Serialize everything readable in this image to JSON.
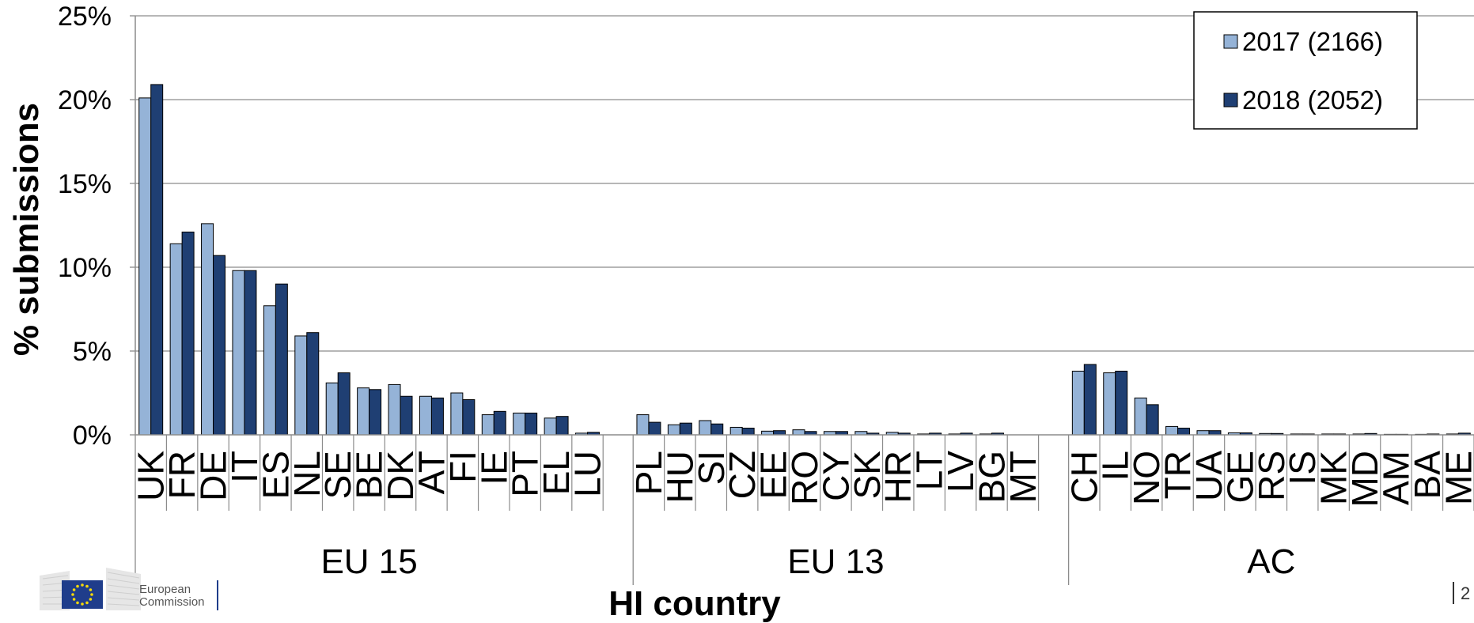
{
  "chart_data": {
    "type": "bar",
    "title": "",
    "ylabel": "% submissions",
    "xlabel": "HI country",
    "ylim": [
      0,
      25
    ],
    "yticks": [
      "0%",
      "5%",
      "10%",
      "15%",
      "20%",
      "25%"
    ],
    "grid": true,
    "legend_position": "top-right",
    "series_colors": [
      "#95b3d7",
      "#1f3f73"
    ],
    "groups": [
      {
        "label": "EU 15",
        "categories": [
          "UK",
          "FR",
          "DE",
          "IT",
          "ES",
          "NL",
          "SE",
          "BE",
          "DK",
          "AT",
          "FI",
          "IE",
          "PT",
          "EL",
          "LU"
        ],
        "s2017": [
          20.1,
          11.4,
          12.6,
          9.8,
          7.7,
          5.9,
          3.1,
          2.8,
          3.0,
          2.3,
          2.5,
          1.2,
          1.3,
          1.0,
          0.1
        ],
        "s2018": [
          20.9,
          12.1,
          10.7,
          9.8,
          9.0,
          6.1,
          3.7,
          2.7,
          2.3,
          2.2,
          2.1,
          1.4,
          1.3,
          1.1,
          0.15
        ]
      },
      {
        "label": "EU 13",
        "categories": [
          "PL",
          "HU",
          "SI",
          "CZ",
          "EE",
          "RO",
          "CY",
          "SK",
          "HR",
          "LT",
          "LV",
          "BG",
          "MT"
        ],
        "s2017": [
          1.2,
          0.6,
          0.85,
          0.45,
          0.22,
          0.3,
          0.2,
          0.2,
          0.15,
          0.05,
          0.05,
          0.05,
          0.0
        ],
        "s2018": [
          0.75,
          0.7,
          0.65,
          0.4,
          0.25,
          0.2,
          0.2,
          0.1,
          0.1,
          0.1,
          0.1,
          0.1,
          0.0
        ]
      },
      {
        "label": "AC",
        "categories": [
          "CH",
          "IL",
          "NO",
          "TR",
          "UA",
          "GE",
          "RS",
          "IS",
          "MK",
          "MD",
          "AM",
          "BA",
          "ME"
        ],
        "s2017": [
          3.8,
          3.7,
          2.2,
          0.5,
          0.25,
          0.12,
          0.08,
          0.05,
          0.05,
          0.05,
          0.03,
          0.03,
          0.05
        ],
        "s2018": [
          4.2,
          3.8,
          1.8,
          0.4,
          0.25,
          0.12,
          0.08,
          0.05,
          0.05,
          0.08,
          0.03,
          0.05,
          0.1
        ]
      }
    ],
    "series": [
      {
        "name": "2017 (2166)"
      },
      {
        "name": "2018 (2052)"
      }
    ]
  },
  "branding": {
    "logo_line1": "European",
    "logo_line2": "Commission",
    "page_number": "2"
  }
}
